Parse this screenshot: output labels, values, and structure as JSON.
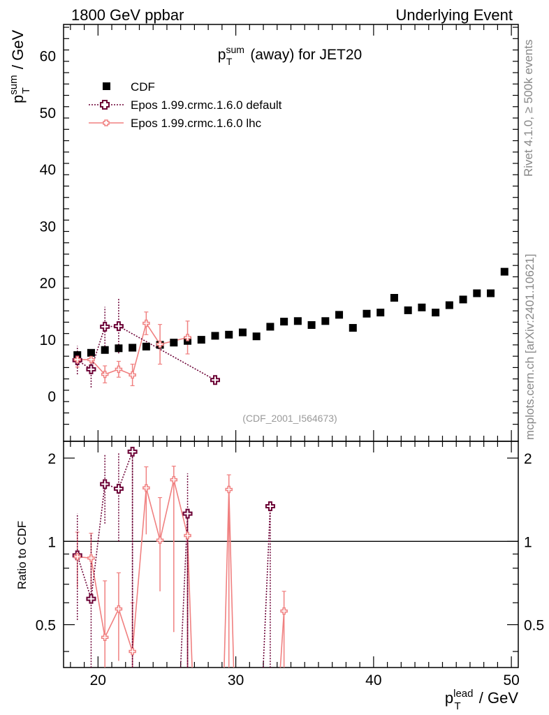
{
  "header": {
    "left": "1800 GeV ppbar",
    "right": "Underlying Event"
  },
  "side_labels": {
    "rivet": "Rivet 4.1.0, ≥ 500k events",
    "mcplots": "mcplots.cern.ch [arXiv:2401.10621]"
  },
  "colors": {
    "cdf": "#000000",
    "default": "#6b0035",
    "lhc": "#f08080",
    "watermark": "#999999"
  },
  "chart_data": [
    {
      "type": "scatter",
      "title": "p_T^sum (away) for JET20",
      "title_parts": {
        "base": "p",
        "sup": "sum",
        "sub": "T",
        "rest": " (away) for JET20"
      },
      "ylabel": "p_T^sum / GeV",
      "ylabel_parts": {
        "base": "p",
        "sup": "sum",
        "sub": "T",
        "rest": " / GeV"
      },
      "xlim": [
        17.5,
        50.5
      ],
      "ylim": [
        -8,
        65.5
      ],
      "yticks": [
        0,
        10,
        20,
        30,
        40,
        50,
        60
      ],
      "ytick_labels": [
        "0",
        "10",
        "20",
        "30",
        "40",
        "50",
        "60"
      ],
      "analysis_id": "(CDF_2001_I564673)",
      "legend": {
        "position": "top-left",
        "entries": [
          "CDF",
          "Epos 1.99.crmc.1.6.0 default",
          "Epos 1.99.crmc.1.6.0 lhc"
        ]
      },
      "series": [
        {
          "name": "CDF",
          "x": [
            18.5,
            19.5,
            20.5,
            21.5,
            22.5,
            23.5,
            24.5,
            25.5,
            26.5,
            27.5,
            28.5,
            29.5,
            30.5,
            31.5,
            32.5,
            33.5,
            34.5,
            35.5,
            36.5,
            37.5,
            38.5,
            39.5,
            40.5,
            41.5,
            42.5,
            43.5,
            44.5,
            45.5,
            46.5,
            47.5,
            48.5,
            49.5
          ],
          "y": [
            7.2,
            7.6,
            8.1,
            8.4,
            8.5,
            8.7,
            9.0,
            9.4,
            9.7,
            9.9,
            10.6,
            10.8,
            11.2,
            10.5,
            12.2,
            13.1,
            13.2,
            12.5,
            13.2,
            14.3,
            12.0,
            14.5,
            14.7,
            17.3,
            15.1,
            15.6,
            14.7,
            16.0,
            17.0,
            18.1,
            18.1,
            21.9
          ]
        },
        {
          "name": "Epos 1.99.crmc.1.6.0 default",
          "x": [
            18.5,
            19.5,
            20.5,
            21.5,
            28.5
          ],
          "y": [
            6.3,
            4.7,
            12.2,
            12.3,
            2.8
          ],
          "yerr": [
            2.5,
            3.2,
            3.5,
            4.8,
            0.4
          ]
        },
        {
          "name": "Epos 1.99.crmc.1.6.0 lhc",
          "x": [
            18.5,
            19.5,
            20.5,
            21.5,
            22.5,
            23.5,
            24.5,
            26.5
          ],
          "y": [
            6.4,
            6.4,
            3.8,
            4.7,
            3.7,
            12.8,
            9.1,
            10.3
          ],
          "yerr": [
            1.3,
            1.0,
            1.5,
            1.4,
            1.9,
            2.0,
            3.5,
            2.9
          ]
        }
      ]
    },
    {
      "type": "line",
      "ylabel": "Ratio to CDF",
      "xlabel": "p_T^lead / GeV",
      "xlabel_parts": {
        "base": "p",
        "sup": "lead",
        "sub": "T",
        "rest": " / GeV"
      },
      "xlim": [
        17.5,
        50.5
      ],
      "ylim": [
        0.35,
        2.3
      ],
      "yticks": [
        0.5,
        1,
        2
      ],
      "ytick_labels": [
        "0.5",
        "1",
        "2"
      ],
      "xticks": [
        20,
        30,
        40,
        50
      ],
      "xtick_labels": [
        "20",
        "30",
        "40",
        "50"
      ],
      "reference_line": 1,
      "series": [
        {
          "name": "Epos 1.99.crmc.1.6.0 default",
          "x": [
            18.5,
            19.5,
            20.5,
            21.5,
            22.5,
            26.5,
            32.5
          ],
          "y": [
            0.89,
            0.62,
            1.61,
            1.55,
            2.11,
            1.26,
            1.34
          ],
          "yerr_low": [
            0.37,
            0.45,
            0.45,
            0.55,
            1.9,
            1.0,
            1.2
          ],
          "yerr_high": [
            0.37,
            0.45,
            0.45,
            0.55,
            0.0,
            0.5,
            0.0
          ],
          "continues_below": [
            32.0,
            26.5,
            22.5,
            21.5
          ]
        },
        {
          "name": "Epos 1.99.crmc.1.6.0 lhc",
          "x": [
            18.5,
            19.5,
            20.5,
            21.5,
            22.5,
            23.5,
            24.5,
            25.5,
            26.5,
            29.5,
            33.5
          ],
          "y": [
            0.88,
            0.87,
            0.45,
            0.57,
            0.4,
            1.56,
            1.01,
            1.67,
            1.05,
            1.54,
            0.56
          ],
          "yerr_low": [
            0.2,
            0.2,
            0.2,
            0.2,
            0.2,
            0.5,
            0.35,
            1.2,
            0.8,
            1.2,
            0.3
          ],
          "yerr_high": [
            0.2,
            0.2,
            0.27,
            0.2,
            0.2,
            0.3,
            0.43,
            0.2,
            0.25,
            0.2,
            0.1
          ]
        }
      ]
    }
  ]
}
